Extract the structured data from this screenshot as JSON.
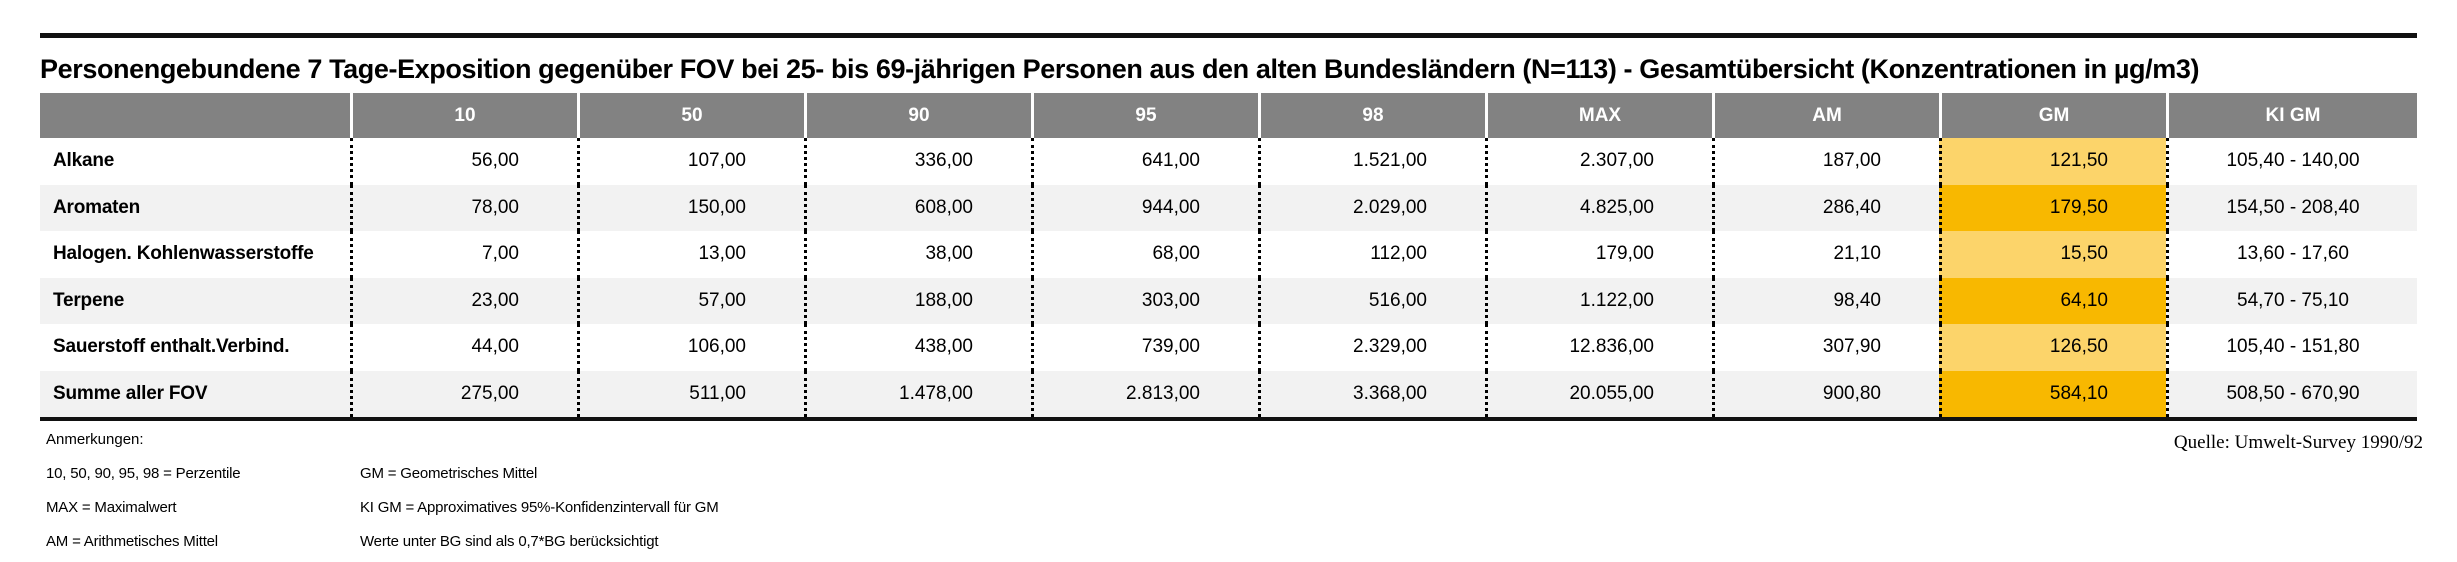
{
  "page": {
    "title": "Personengebundene 7 Tage-Exposition gegenüber FOV bei 25- bis 69-jährigen Personen aus den alten Bundesländern (N=113) - Gesamtübersicht (Konzentrationen in µg/m3)",
    "source": "Quelle: Umwelt-Survey 1990/92"
  },
  "table": {
    "columns": [
      "10",
      "50",
      "90",
      "95",
      "98",
      "MAX",
      "AM",
      "GM",
      "KI GM"
    ],
    "rows": [
      {
        "label": "Alkane",
        "values": [
          "56,00",
          "107,00",
          "336,00",
          "641,00",
          "1.521,00",
          "2.307,00",
          "187,00",
          "121,50",
          "105,40 - 140,00"
        ]
      },
      {
        "label": "Aromaten",
        "values": [
          "78,00",
          "150,00",
          "608,00",
          "944,00",
          "2.029,00",
          "4.825,00",
          "286,40",
          "179,50",
          "154,50 - 208,40"
        ]
      },
      {
        "label": "Halogen. Kohlenwasserstoffe",
        "values": [
          "7,00",
          "13,00",
          "38,00",
          "68,00",
          "112,00",
          "179,00",
          "21,10",
          "15,50",
          "13,60 - 17,60"
        ]
      },
      {
        "label": "Terpene",
        "values": [
          "23,00",
          "57,00",
          "188,00",
          "303,00",
          "516,00",
          "1.122,00",
          "98,40",
          "64,10",
          "54,70 - 75,10"
        ]
      },
      {
        "label": "Sauerstoff enthalt.Verbind.",
        "values": [
          "44,00",
          "106,00",
          "438,00",
          "739,00",
          "2.329,00",
          "12.836,00",
          "307,90",
          "126,50",
          "105,40 - 151,80"
        ]
      },
      {
        "label": "Summe aller FOV",
        "values": [
          "275,00",
          "511,00",
          "1.478,00",
          "2.813,00",
          "3.368,00",
          "20.055,00",
          "900,80",
          "584,10",
          "508,50 - 670,90"
        ]
      }
    ]
  },
  "notes": {
    "heading": "Anmerkungen:",
    "col1": [
      "10, 50, 90, 95, 98 = Perzentile",
      "MAX = Maximalwert",
      "AM = Arithmetisches Mittel"
    ],
    "col2": [
      "GM = Geometrisches Mittel",
      "KI GM = Approximatives 95%-Konfidenzintervall für GM",
      "Werte unter BG sind als 0,7*BG berücksichtigt"
    ]
  },
  "colors": {
    "header_bg": "#828282",
    "header_text": "#ffffff",
    "row_alt_bg": "#f2f2f2",
    "gm_highlight_light": "#fcd46a",
    "gm_highlight_dark": "#f8b800",
    "rule_black": "#111111"
  },
  "chart_data": {
    "type": "table",
    "title": "Personengebundene 7 Tage-Exposition gegenüber FOV bei 25- bis 69-jährigen Personen aus den alten Bundesländern (N=113) - Gesamtübersicht (Konzentrationen in µg/m3)",
    "unit": "µg/m3",
    "columns": [
      "10",
      "50",
      "90",
      "95",
      "98",
      "MAX",
      "AM",
      "GM",
      "KI GM"
    ],
    "rows": [
      {
        "category": "Alkane",
        "p10": 56,
        "p50": 107,
        "p90": 336,
        "p95": 641,
        "p98": 1521,
        "max": 2307,
        "am": 187,
        "gm": 121.5,
        "ki_gm": [
          105.4,
          140.0
        ]
      },
      {
        "category": "Aromaten",
        "p10": 78,
        "p50": 150,
        "p90": 608,
        "p95": 944,
        "p98": 2029,
        "max": 4825,
        "am": 286.4,
        "gm": 179.5,
        "ki_gm": [
          154.5,
          208.4
        ]
      },
      {
        "category": "Halogen. Kohlenwasserstoffe",
        "p10": 7,
        "p50": 13,
        "p90": 38,
        "p95": 68,
        "p98": 112,
        "max": 179,
        "am": 21.1,
        "gm": 15.5,
        "ki_gm": [
          13.6,
          17.6
        ]
      },
      {
        "category": "Terpene",
        "p10": 23,
        "p50": 57,
        "p90": 188,
        "p95": 303,
        "p98": 516,
        "max": 1122,
        "am": 98.4,
        "gm": 64.1,
        "ki_gm": [
          54.7,
          75.1
        ]
      },
      {
        "category": "Sauerstoff enthalt.Verbind.",
        "p10": 44,
        "p50": 106,
        "p90": 438,
        "p95": 739,
        "p98": 2329,
        "max": 12836,
        "am": 307.9,
        "gm": 126.5,
        "ki_gm": [
          105.4,
          151.8
        ]
      },
      {
        "category": "Summe aller FOV",
        "p10": 275,
        "p50": 511,
        "p90": 1478,
        "p95": 2813,
        "p98": 3368,
        "max": 20055,
        "am": 900.8,
        "gm": 584.1,
        "ki_gm": [
          508.5,
          670.9
        ]
      }
    ],
    "source": "Quelle: Umwelt-Survey 1990/92",
    "legend": {
      "percentiles": "10, 50, 90, 95, 98 = Perzentile",
      "max": "MAX = Maximalwert",
      "am": "AM = Arithmetisches Mittel",
      "gm": "GM = Geometrisches Mittel",
      "ki_gm": "KI GM = Approximatives 95%-Konfidenzintervall für GM",
      "bg_note": "Werte unter BG sind als 0,7*BG berücksichtigt"
    }
  }
}
